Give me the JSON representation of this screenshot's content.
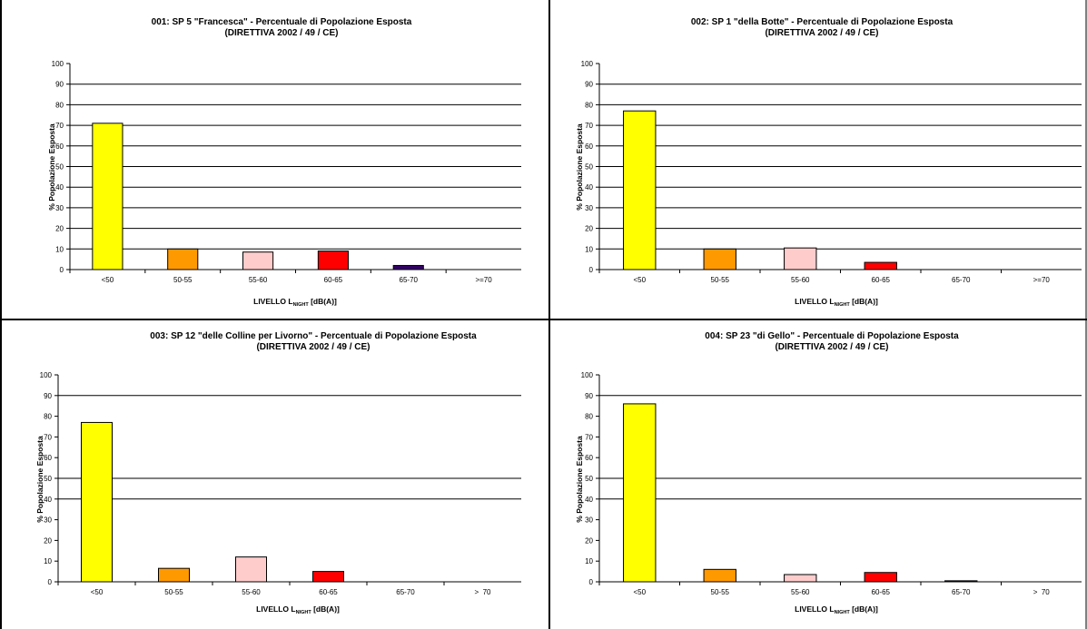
{
  "chart_data": [
    {
      "type": "bar",
      "title": "001: SP 5 \"Francesca\"  - Percentuale di Popolazione Esposta",
      "subtitle": "(DIRETTIVA 2002 / 49 / CE)",
      "xlabel": "LIVELLO L",
      "xlabel_sub": "NIGHT",
      "xlabel_unit": " [dB(A)]",
      "ylabel": "% Popolazione Esposta",
      "categories": [
        "<50",
        "50-55",
        "55-60",
        "60-65",
        "65-70",
        ">=70"
      ],
      "values": [
        71,
        10,
        8.5,
        9,
        2,
        0
      ],
      "colors": [
        "#ffff00",
        "#ff9900",
        "#ffcccc",
        "#ff0000",
        "#330066",
        "#ffffff"
      ],
      "ylim": [
        0,
        100
      ],
      "yticks": [
        0,
        10,
        20,
        30,
        40,
        50,
        60,
        70,
        80,
        90,
        100
      ],
      "gridlines": [
        10,
        20,
        30,
        40,
        50,
        60,
        70,
        80,
        90
      ]
    },
    {
      "type": "bar",
      "title": "002: SP 1 \"della Botte\" - Percentuale di Popolazione Esposta",
      "subtitle": "(DIRETTIVA 2002 / 49 / CE)",
      "xlabel": "LIVELLO L",
      "xlabel_sub": "NIGHT",
      "xlabel_unit": " [dB(A)]",
      "ylabel": "% Popolazione Esposta",
      "categories": [
        "<50",
        "50-55",
        "55-60",
        "60-65",
        "65-70",
        ">=70"
      ],
      "values": [
        77,
        10,
        10.5,
        3.5,
        0,
        0
      ],
      "colors": [
        "#ffff00",
        "#ff9900",
        "#ffcccc",
        "#ff0000",
        "#330066",
        "#ffffff"
      ],
      "ylim": [
        0,
        100
      ],
      "yticks": [
        0,
        10,
        20,
        30,
        40,
        50,
        60,
        70,
        80,
        90,
        100
      ],
      "gridlines": [
        10,
        20,
        30,
        40,
        50,
        60,
        70,
        80,
        90
      ]
    },
    {
      "type": "bar",
      "title": "003: SP 12 \"delle Colline per Livorno\" - Percentuale di Popolazione Esposta",
      "subtitle": "(DIRETTIVA 2002 / 49 / CE)",
      "xlabel": "LIVELLO L",
      "xlabel_sub": "NIGHT",
      "xlabel_unit": " [dB(A)]",
      "ylabel": "% Popolazione Esposta",
      "categories": [
        "<50",
        "50-55",
        "55-60",
        "60-65",
        "65-70",
        ">  70"
      ],
      "values": [
        77,
        6.5,
        12,
        5,
        0,
        0
      ],
      "colors": [
        "#ffff00",
        "#ff9900",
        "#ffcccc",
        "#ff0000",
        "#330066",
        "#ffffff"
      ],
      "ylim": [
        0,
        100
      ],
      "yticks": [
        0,
        10,
        20,
        30,
        40,
        50,
        60,
        70,
        80,
        90,
        100
      ],
      "gridlines": [
        40,
        50,
        90
      ]
    },
    {
      "type": "bar",
      "title": "004: SP 23 \"di Gello\" - Percentuale di Popolazione Esposta",
      "subtitle": "(DIRETTIVA 2002 / 49 / CE)",
      "xlabel": "LIVELLO L",
      "xlabel_sub": "NIGHT",
      "xlabel_unit": " [dB(A)]",
      "ylabel": "% Popolazione Esposta",
      "categories": [
        "<50",
        "50-55",
        "55-60",
        "60-65",
        "65-70",
        ">  70"
      ],
      "values": [
        86,
        6,
        3.5,
        4.5,
        0.5,
        0
      ],
      "colors": [
        "#ffff00",
        "#ff9900",
        "#ffcccc",
        "#ff0000",
        "#330066",
        "#ffffff"
      ],
      "ylim": [
        0,
        100
      ],
      "yticks": [
        0,
        10,
        20,
        30,
        40,
        50,
        60,
        70,
        80,
        90,
        100
      ],
      "gridlines": [
        40,
        50,
        90
      ]
    }
  ]
}
